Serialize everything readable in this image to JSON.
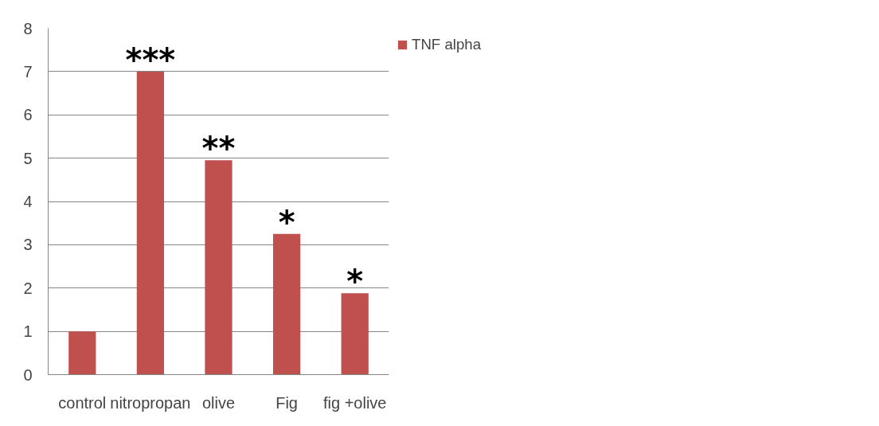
{
  "chart_data": {
    "type": "bar",
    "categories": [
      "control",
      "nitropropan",
      "olive",
      "Fig",
      "fig +olive"
    ],
    "series": [
      {
        "name": "TNF alpha",
        "color": "#c0504d",
        "values": [
          1.0,
          7.0,
          4.95,
          3.25,
          1.88
        ]
      }
    ],
    "ylim": [
      0,
      8
    ],
    "yticks": [
      0,
      1,
      2,
      3,
      4,
      5,
      6,
      7,
      8
    ],
    "grid": "y",
    "legend": "right",
    "annotations": [
      {
        "text": "***",
        "x": "nitropropan",
        "y": 7.0
      },
      {
        "text": "**",
        "x": "olive",
        "y": 4.95
      },
      {
        "text": "*",
        "x": "Fig",
        "y": 3.25
      },
      {
        "text": "*",
        "x": "fig +olive",
        "y": 1.88
      }
    ]
  }
}
